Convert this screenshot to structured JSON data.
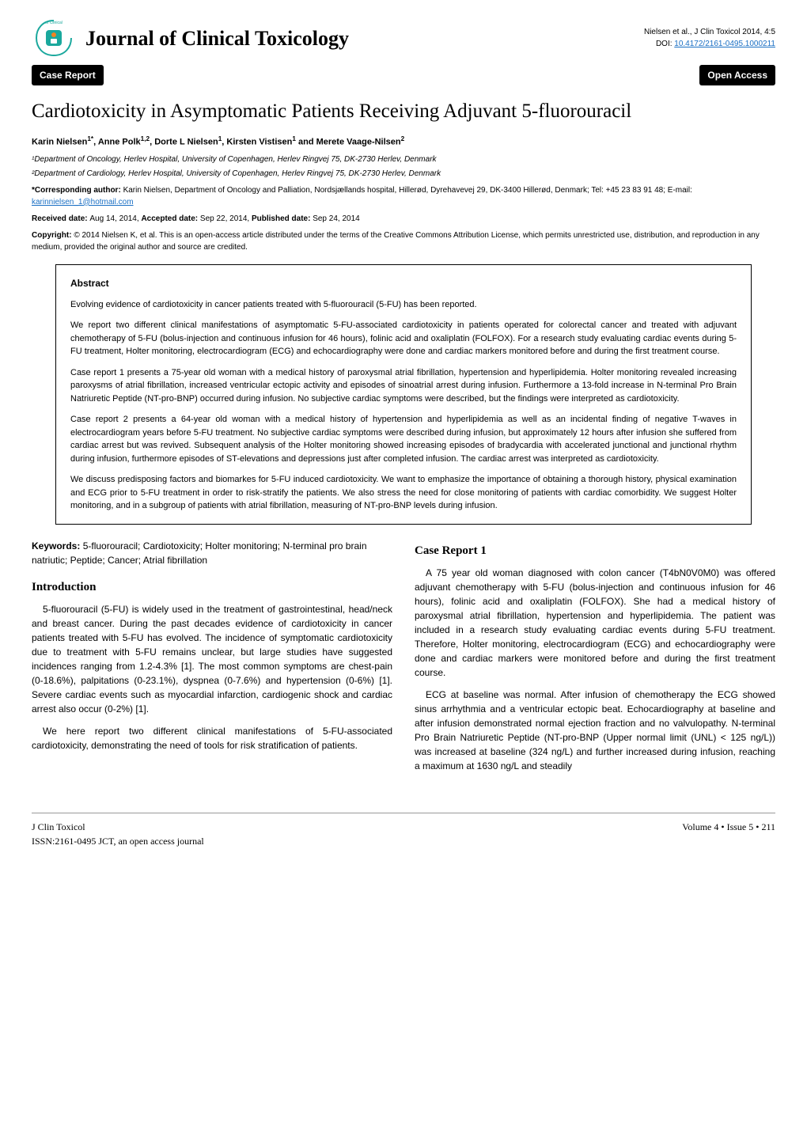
{
  "header": {
    "journal_title": "Journal of Clinical Toxicology",
    "citation": "Nielsen et al., J Clin Toxicol 2014, 4:5",
    "doi_prefix": "DOI: ",
    "doi": "10.4172/2161-0495.1000211",
    "issn_badge": "ISSN: 2161-0495",
    "logo_text_top": "of Clinical",
    "logo_text_left": "Journal"
  },
  "badges": {
    "left": "Case Report",
    "right": "Open Access"
  },
  "article": {
    "title": "Cardiotoxicity in Asymptomatic Patients Receiving Adjuvant 5-fluorouracil",
    "authors_html": "Karin Nielsen<sup>1*</sup>, Anne Polk<sup>1,2</sup>, Dorte L Nielsen<sup>1</sup>, Kirsten Vistisen<sup>1</sup> and Merete Vaage-Nilsen<sup>2</sup>",
    "affiliations": [
      "¹Department of Oncology, Herlev Hospital, University of Copenhagen, Herlev Ringvej 75, DK-2730 Herlev, Denmark",
      "²Department of Cardiology, Herlev Hospital, University of Copenhagen, Herlev Ringvej 75, DK-2730 Herlev, Denmark"
    ],
    "corresponding_label": "*Corresponding author: ",
    "corresponding_text": "Karin Nielsen, Department of Oncology and Palliation, Nordsjællands hospital, Hillerød, Dyrehavevej 29, DK-3400 Hillerød, Denmark; Tel: +45 23 83 91 48; E-mail: ",
    "corresponding_email": "karinnielsen_1@hotmail.com",
    "received_label": "Received date: ",
    "received": "Aug 14, 2014, ",
    "accepted_label": "Accepted date: ",
    "accepted": "Sep 22, 2014, ",
    "published_label": "Published date: ",
    "published": "Sep 24, 2014",
    "copyright_label": "Copyright: ",
    "copyright_text": "© 2014 Nielsen K, et al. This is an open-access article distributed under the terms of the Creative Commons Attribution License, which permits unrestricted use, distribution, and reproduction in any medium, provided the original author and source are credited."
  },
  "abstract": {
    "heading": "Abstract",
    "paragraphs": [
      "Evolving evidence of cardiotoxicity in cancer patients treated with 5-fluorouracil (5-FU) has been reported.",
      "We report two different clinical manifestations of asymptomatic 5-FU-associated cardiotoxicity in patients operated for colorectal cancer and treated with adjuvant chemotherapy of 5-FU (bolus-injection and continuous infusion for 46 hours), folinic acid and oxaliplatin (FOLFOX). For a research study evaluating cardiac events during 5-FU treatment, Holter monitoring, electrocardiogram (ECG) and echocardiography were done and cardiac markers monitored before and during the first treatment course.",
      "Case report 1 presents a 75-year old woman with a medical history of paroxysmal atrial fibrillation, hypertension and hyperlipidemia. Holter monitoring revealed increasing paroxysms of atrial fibrillation, increased ventricular ectopic activity and episodes of sinoatrial arrest during infusion. Furthermore a 13-fold increase in N-terminal Pro Brain Natriuretic Peptide (NT-pro-BNP) occurred during infusion. No subjective cardiac symptoms were described, but the findings were interpreted as cardiotoxicity.",
      "Case report 2 presents a 64-year old woman with a medical history of hypertension and hyperlipidemia as well as an incidental finding of negative T-waves in electrocardiogram years before 5-FU treatment. No subjective cardiac symptoms were described during infusion, but approximately 12 hours after infusion she suffered from cardiac arrest but was revived. Subsequent analysis of the Holter monitoring showed increasing episodes of bradycardia with accelerated junctional and junctional rhythm during infusion, furthermore episodes of ST-elevations and depressions just after completed infusion. The cardiac arrest was interpreted as cardiotoxicity.",
      "We discuss predisposing factors and biomarkes for 5-FU induced cardiotoxicity. We want to emphasize the importance of obtaining a thorough history, physical examination and ECG prior to 5-FU treatment in order to risk-stratify the patients. We also stress the need for close monitoring of patients with cardiac comorbidity. We suggest Holter monitoring, and in a subgroup of patients with atrial fibrillation, measuring of NT-pro-BNP levels during infusion."
    ]
  },
  "keywords": {
    "label": "Keywords: ",
    "text": "5-fluorouracil; Cardiotoxicity; Holter monitoring; N-terminal pro brain natriutic; Peptide; Cancer; Atrial fibrillation"
  },
  "sections": {
    "introduction": {
      "heading": "Introduction",
      "paragraphs": [
        "5-fluorouracil (5-FU) is widely used in the treatment of gastrointestinal, head/neck and breast cancer. During the past decades evidence of cardiotoxicity in cancer patients treated with 5-FU has evolved. The incidence of symptomatic cardiotoxicity due to treatment with 5-FU remains unclear, but large studies have suggested incidences ranging from 1.2-4.3% [1]. The most common symptoms are chest-pain (0-18.6%), palpitations (0-23.1%), dyspnea (0-7.6%) and hypertension (0-6%) [1]. Severe cardiac events such as myocardial infarction, cardiogenic shock and cardiac arrest also occur (0-2%) [1].",
        "We here report two different clinical manifestations of 5-FU-associated cardiotoxicity, demonstrating the need of tools for risk stratification of patients."
      ]
    },
    "case1": {
      "heading": "Case Report 1",
      "paragraphs": [
        "A 75 year old woman diagnosed with colon cancer (T4bN0V0M0) was offered adjuvant chemotherapy with 5-FU (bolus-injection and continuous infusion for 46 hours), folinic acid and oxaliplatin (FOLFOX). She had a medical history of paroxysmal atrial fibrillation, hypertension and hyperlipidemia. The patient was included in a research study evaluating cardiac events during 5-FU treatment. Therefore, Holter monitoring, electrocardiogram (ECG) and echocardiography were done and cardiac markers were monitored before and during the first treatment course.",
        "ECG at baseline was normal. After infusion of chemotherapy the ECG showed sinus arrhythmia and a ventricular ectopic beat. Echocardiography at baseline and after infusion demonstrated normal ejection fraction and no valvulopathy. N-terminal Pro Brain Natriuretic Peptide (NT-pro-BNP (Upper normal limit (UNL) < 125 ng/L)) was increased at baseline (324 ng/L) and further increased during infusion, reaching a maximum at 1630 ng/L and steadily"
      ]
    }
  },
  "footer": {
    "left_line1": "J Clin Toxicol",
    "left_line2": "ISSN:2161-0495 JCT, an open access journal",
    "right": "Volume 4 • Issue 5 • 211"
  },
  "colors": {
    "link": "#1a6fc4",
    "badge_bg": "#000000",
    "badge_fg": "#ffffff",
    "logo_teal": "#1aa89d",
    "logo_orange": "#f58220"
  }
}
